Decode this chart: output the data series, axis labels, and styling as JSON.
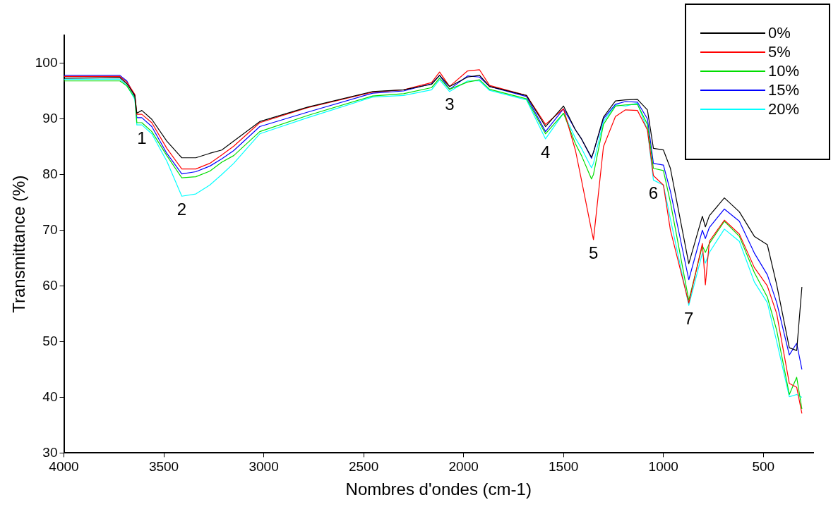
{
  "chart_data": {
    "type": "line",
    "xlabel": "Nombres d'ondes (cm-1)",
    "ylabel": "Transmittance (%)",
    "x": [
      4000,
      3720,
      3685,
      3645,
      3635,
      3610,
      3560,
      3485,
      3410,
      3340,
      3270,
      3210,
      3150,
      3020,
      2780,
      2455,
      2300,
      2160,
      2120,
      2070,
      1980,
      1920,
      1870,
      1685,
      1590,
      1500,
      1440,
      1410,
      1360,
      1350,
      1300,
      1240,
      1190,
      1130,
      1080,
      1050,
      1000,
      965,
      873,
      805,
      790,
      770,
      695,
      620,
      545,
      480,
      433,
      370,
      333,
      307
    ],
    "series": [
      {
        "name": "0%",
        "color": "#000000",
        "values": [
          97.3,
          97.4,
          96.3,
          94.2,
          91.0,
          91.5,
          89.9,
          86.0,
          83.0,
          83.0,
          83.8,
          84.4,
          86.0,
          89.5,
          92.1,
          94.9,
          95.2,
          96.2,
          97.8,
          95.8,
          97.5,
          97.8,
          95.8,
          94.2,
          88.6,
          92.3,
          88.0,
          86.4,
          83.1,
          84.0,
          90.3,
          93.2,
          93.4,
          93.5,
          91.6,
          84.7,
          84.4,
          81.1,
          64.0,
          72.5,
          70.6,
          72.6,
          75.8,
          73.3,
          68.9,
          67.4,
          60.2,
          48.9,
          48.4,
          59.8
        ]
      },
      {
        "name": "5%",
        "color": "#ff0000",
        "values": [
          97.6,
          97.6,
          96.6,
          94.4,
          90.8,
          90.8,
          89.3,
          84.7,
          81.0,
          81.0,
          82.0,
          83.5,
          85.1,
          89.3,
          92.0,
          94.8,
          95.2,
          96.5,
          98.4,
          95.8,
          98.6,
          98.8,
          96.0,
          94.2,
          89.0,
          91.8,
          84.3,
          79.0,
          70.0,
          68.3,
          85.0,
          90.4,
          91.6,
          91.5,
          88.0,
          79.8,
          78.1,
          70.0,
          56.9,
          67.6,
          60.2,
          68.0,
          71.8,
          69.3,
          63.3,
          60.0,
          55.0,
          42.5,
          41.8,
          37.1
        ]
      },
      {
        "name": "10%",
        "color": "#00dd00",
        "values": [
          96.8,
          96.8,
          95.9,
          93.8,
          89.3,
          89.3,
          87.7,
          83.4,
          79.4,
          79.6,
          80.6,
          82.2,
          83.4,
          87.7,
          90.6,
          94.1,
          94.5,
          95.6,
          97.3,
          95.3,
          96.6,
          97.0,
          95.3,
          93.6,
          87.3,
          91.0,
          85.5,
          83.4,
          79.2,
          80.0,
          89.0,
          92.3,
          92.5,
          92.6,
          89.0,
          81.1,
          80.7,
          75.0,
          57.4,
          67.2,
          66.0,
          67.6,
          71.6,
          68.9,
          62.4,
          58.0,
          52.0,
          40.5,
          43.6,
          37.9
        ]
      },
      {
        "name": "15%",
        "color": "#0000ff",
        "values": [
          97.8,
          97.8,
          96.8,
          94.0,
          90.2,
          90.2,
          88.6,
          83.8,
          80.1,
          80.5,
          81.5,
          82.8,
          84.3,
          88.6,
          91.2,
          94.6,
          95.0,
          96.3,
          97.8,
          95.3,
          97.7,
          97.5,
          95.8,
          94.0,
          87.7,
          91.8,
          88.0,
          86.4,
          82.9,
          84.0,
          90.0,
          92.6,
          93.1,
          93.0,
          90.0,
          82.0,
          81.7,
          77.0,
          61.1,
          70.0,
          68.5,
          70.5,
          73.8,
          71.6,
          65.9,
          62.0,
          57.0,
          47.6,
          49.7,
          45.0
        ]
      },
      {
        "name": "20%",
        "color": "#00ffff",
        "values": [
          97.1,
          97.1,
          96.0,
          93.5,
          88.9,
          88.9,
          87.3,
          82.4,
          76.1,
          76.5,
          78.1,
          80.0,
          82.0,
          87.3,
          90.2,
          93.9,
          94.2,
          95.2,
          97.0,
          94.9,
          96.8,
          96.8,
          95.1,
          93.4,
          86.4,
          91.0,
          86.5,
          84.7,
          81.2,
          82.0,
          89.5,
          92.5,
          92.3,
          92.8,
          88.0,
          79.0,
          78.1,
          72.0,
          56.5,
          65.9,
          64.1,
          66.0,
          70.2,
          68.0,
          60.7,
          57.0,
          50.0,
          40.1,
          40.5,
          40.0
        ]
      }
    ],
    "xlim": [
      4000,
      250
    ],
    "xticks": [
      4000,
      3500,
      3000,
      2500,
      2000,
      1500,
      1000,
      500
    ],
    "ylim": [
      30,
      105
    ],
    "yticks": [
      30,
      40,
      50,
      60,
      70,
      80,
      90,
      100
    ],
    "grid": false,
    "legend": "top right",
    "annotations": [
      {
        "text": "1",
        "x": 3610,
        "y": 88.9
      },
      {
        "text": "2",
        "x": 3410,
        "y": 76.1
      },
      {
        "text": "3",
        "x": 2070,
        "y": 94.9
      },
      {
        "text": "4",
        "x": 1590,
        "y": 86.4
      },
      {
        "text": "5",
        "x": 1350,
        "y": 68.3
      },
      {
        "text": "6",
        "x": 1050,
        "y": 79.0
      },
      {
        "text": "7",
        "x": 873,
        "y": 56.5
      }
    ]
  }
}
